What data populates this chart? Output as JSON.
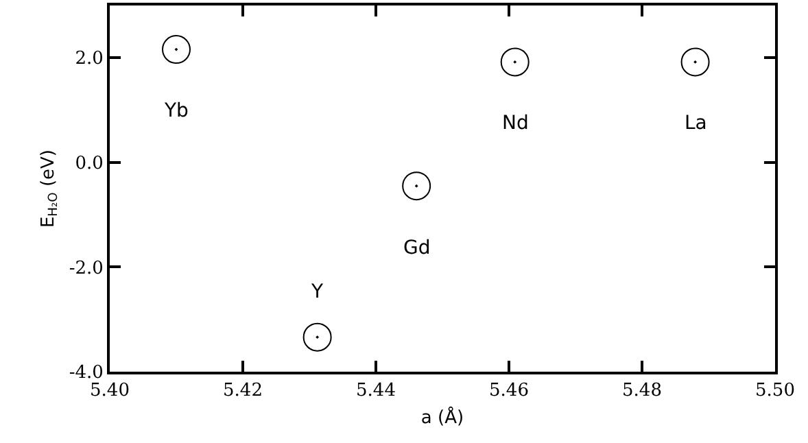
{
  "chart_data": {
    "type": "scatter",
    "xlabel": "a (Å)",
    "ylabel": "E$_{H₂O}$ (eV)",
    "x": [
      5.41,
      5.4312,
      5.4461,
      5.4609,
      5.488
    ],
    "series": [
      {
        "color": "#000000",
        "values": [
          2.16,
          -3.34,
          -0.45,
          1.92,
          1.92
        ]
      }
    ],
    "marker": "circle",
    "grid": false,
    "legend": false,
    "xlim": [
      5.4,
      5.5
    ],
    "xticks": [
      {
        "value": 5.4,
        "label": "5.40"
      },
      5.42,
      5.44,
      5.46,
      5.48,
      {
        "value": 5.5,
        "label": "5.50"
      }
    ],
    "ylim": [
      -4.0,
      3.0
    ],
    "yticks": [
      {
        "value": -4.0,
        "label": "-4.0"
      },
      {
        "value": -2.0,
        "label": "-2.0"
      },
      {
        "value": 0.0,
        "label": "0.0"
      },
      {
        "value": 2.0,
        "label": "2.0"
      }
    ],
    "annotations": [
      {
        "text": "Yb",
        "x": 5.41,
        "y": 2.16
      },
      {
        "text": "Y",
        "x": 5.4312,
        "y": -3.34
      },
      {
        "text": "Gd",
        "x": 5.4461,
        "y": -0.45
      },
      {
        "text": "Nd",
        "x": 5.4609,
        "y": 1.92
      },
      {
        "text": "La",
        "x": 5.488,
        "y": 1.92
      }
    ]
  }
}
